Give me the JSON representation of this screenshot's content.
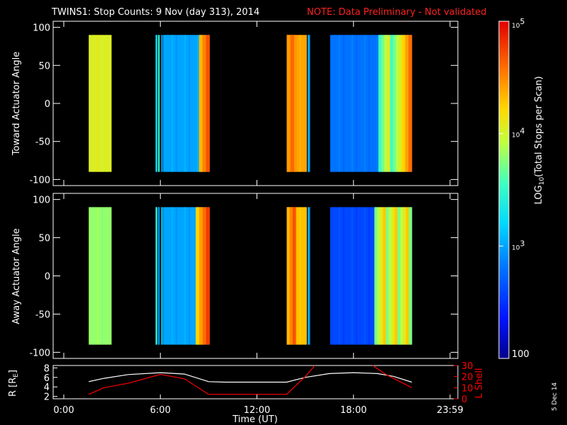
{
  "title": {
    "main": "TWINS1: Stop Counts:  9 Nov (day 313), 2014",
    "note": "NOTE: Data Preliminary - Not validated",
    "note_color": "#ff2020"
  },
  "date_stamp": "5 Dec 14",
  "colors": {
    "line_white": "#ffffff",
    "line_red": "#ff0000",
    "axis": "#ffffff"
  },
  "chart_data": [
    {
      "type": "heatmap",
      "ylabel": "Toward Actuator Angle",
      "ylim": [
        -108,
        108
      ],
      "yticks": [
        100,
        50,
        0,
        -50,
        -100
      ],
      "xlim": [
        0,
        24
      ],
      "bands": [
        {
          "start": 1.55,
          "end": 2.97,
          "level": 4.05
        },
        {
          "start": 5.7,
          "end": 5.82,
          "level": 3.2
        },
        {
          "start": 5.86,
          "end": 5.96,
          "level": 3.5
        },
        {
          "start": 6.05,
          "end": 6.15,
          "level": 3.0
        },
        {
          "start": 6.17,
          "end": 9.05,
          "level": 3.0
        },
        {
          "start": 13.85,
          "end": 15.1,
          "level": 4.4
        },
        {
          "start": 15.15,
          "end": 15.3,
          "level": 3.0
        },
        {
          "start": 16.55,
          "end": 21.62,
          "level": 2.8
        }
      ],
      "highlight": [
        {
          "start": 8.4,
          "end": 9.05,
          "level": 4.6
        },
        {
          "start": 13.85,
          "end": 14.3,
          "level": 4.7
        },
        {
          "start": 19.55,
          "end": 21.0,
          "level": 3.8
        },
        {
          "start": 21.0,
          "end": 21.62,
          "level": 4.5
        }
      ]
    },
    {
      "type": "heatmap",
      "ylabel": "Away Actuator Angle",
      "ylim": [
        -108,
        108
      ],
      "yticks": [
        100,
        50,
        0,
        -50,
        -100
      ],
      "xlim": [
        0,
        24
      ],
      "bands": [
        {
          "start": 1.55,
          "end": 2.97,
          "level": 3.8
        },
        {
          "start": 5.7,
          "end": 5.82,
          "level": 3.4
        },
        {
          "start": 5.86,
          "end": 5.96,
          "level": 3.0
        },
        {
          "start": 6.05,
          "end": 6.15,
          "level": 3.2
        },
        {
          "start": 6.17,
          "end": 9.05,
          "level": 3.0
        },
        {
          "start": 13.85,
          "end": 15.1,
          "level": 4.3
        },
        {
          "start": 15.15,
          "end": 15.3,
          "level": 3.0
        },
        {
          "start": 16.55,
          "end": 21.62,
          "level": 2.6
        }
      ],
      "highlight": [
        {
          "start": 8.2,
          "end": 9.05,
          "level": 4.5
        },
        {
          "start": 13.85,
          "end": 14.4,
          "level": 4.6
        },
        {
          "start": 19.3,
          "end": 21.62,
          "level": 4.0
        }
      ]
    },
    {
      "type": "line",
      "ylabel_left": "R [R",
      "ylabel_left_sub": "E",
      "ylabel_left_end": "]",
      "ylabel_right": "L Shell",
      "ylim_left": [
        1.5,
        8.5
      ],
      "ylim_right": [
        0,
        30
      ],
      "yticks_left": [
        8,
        6,
        4,
        2
      ],
      "yticks_right": [
        30,
        20,
        10,
        0
      ],
      "xticks": [
        "0:00",
        "6:00",
        "12:00",
        "18:00",
        "23:59"
      ],
      "xlabel": "Time (UT)",
      "series": [
        {
          "axis": "left",
          "color": "#ffffff",
          "x": [
            1.55,
            2.5,
            4,
            6,
            7.5,
            9.0,
            10,
            12,
            13.85,
            15,
            16.5,
            18,
            19.5,
            20.5,
            21.62
          ],
          "y": [
            5.1,
            5.8,
            6.6,
            7.0,
            6.7,
            5.1,
            5.0,
            5.0,
            5.0,
            6.0,
            6.8,
            7.0,
            6.8,
            6.2,
            5.0
          ]
        },
        {
          "axis": "right",
          "color": "#ff0000",
          "x": [
            1.55,
            2.5,
            4,
            6,
            7.5,
            9.0,
            10,
            12,
            13.85,
            15,
            15.6
          ],
          "y": [
            4,
            10,
            14,
            22,
            18,
            4,
            4,
            4,
            4,
            20,
            30
          ]
        },
        {
          "axis": "right",
          "color": "#ff0000",
          "x": [
            19.2,
            20,
            21.62
          ],
          "y": [
            30,
            22,
            10
          ]
        }
      ]
    }
  ],
  "colorbar": {
    "label": "LOG",
    "label_sub": "10",
    "label_rest": "(Total Stops per Scan)",
    "range": [
      2,
      5
    ],
    "ticks": [
      {
        "level": 5,
        "base": "10",
        "exp": "5"
      },
      {
        "level": 4,
        "base": "10",
        "exp": "4"
      },
      {
        "level": 3,
        "base": "10",
        "exp": "3"
      },
      {
        "level": 2,
        "base": "100",
        "exp": ""
      }
    ]
  }
}
